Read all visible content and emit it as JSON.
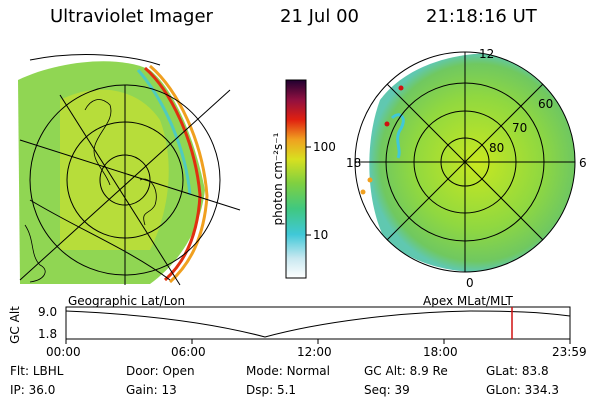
{
  "header": {
    "title": "Ultraviolet Imager",
    "date": "21 Jul 00",
    "time": "21:18:16 UT"
  },
  "colorbar": {
    "label": "photon cm⁻²s⁻¹",
    "ticks": [
      "100",
      "10"
    ]
  },
  "geo_panel": {
    "label": "Geographic Lat/Lon"
  },
  "apex_panel": {
    "label": "Apex MLat/MLT",
    "mlt_labels": {
      "top": "12",
      "left": "18",
      "right": "6",
      "bottom": "0"
    },
    "mlat_labels": [
      "60",
      "70",
      "80"
    ]
  },
  "timeline": {
    "ylabel": "GC Alt",
    "y_ticks": [
      "9.0",
      "1.8"
    ],
    "x_ticks": [
      "00:00",
      "06:00",
      "12:00",
      "18:00",
      "23:59"
    ]
  },
  "info_row1": [
    {
      "key": "Flt:",
      "value": "LBHL"
    },
    {
      "key": "Door:",
      "value": "Open"
    },
    {
      "key": "Mode:",
      "value": "Normal"
    },
    {
      "key": "GC Alt:",
      "value": "8.9 Re"
    },
    {
      "key": "GLat:",
      "value": "83.8"
    }
  ],
  "info_row2": [
    {
      "key": "IP:",
      "value": "36.0"
    },
    {
      "key": "Gain:",
      "value": "13"
    },
    {
      "key": "Dsp:",
      "value": "5.1"
    },
    {
      "key": "Seq:",
      "value": "39"
    },
    {
      "key": "GLon:",
      "value": "334.3"
    }
  ],
  "colors": {
    "green": "#7fd040",
    "yellow": "#d8e020",
    "cyan": "#40c8d8",
    "red": "#d01010",
    "current_time_marker": "#d01010"
  }
}
